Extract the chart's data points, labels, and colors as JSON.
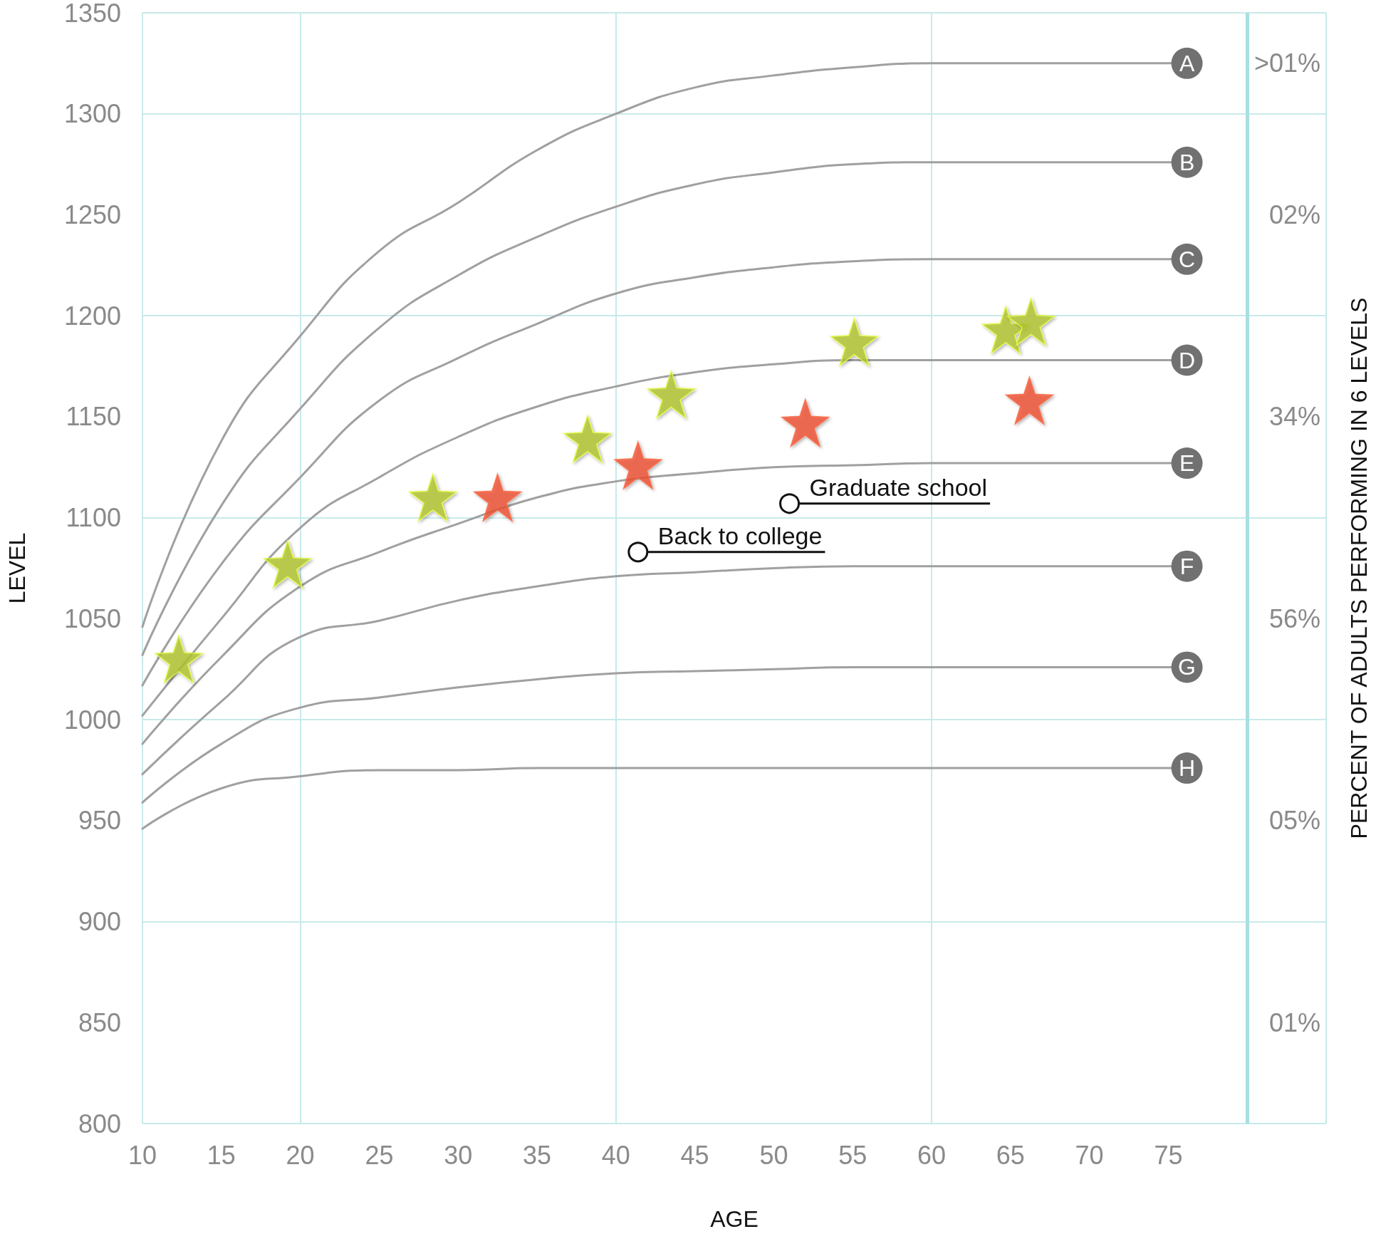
{
  "chart_data": {
    "type": "line",
    "xlabel": "AGE",
    "ylabel": "LEVEL",
    "y2label": "PERCENT OF ADULTS PERFORMING IN 6 LEVELS",
    "xlim": [
      10,
      85
    ],
    "xticks": [
      10,
      15,
      20,
      25,
      30,
      35,
      40,
      45,
      50,
      55,
      60,
      65,
      70,
      75
    ],
    "ylim": [
      800,
      1350
    ],
    "yticks": [
      800,
      850,
      900,
      950,
      1000,
      1050,
      1100,
      1150,
      1200,
      1250,
      1300,
      1350
    ],
    "grid": true,
    "ref_lines": [
      {
        "axis": "x",
        "value": 80,
        "color": "#a9dfe0"
      }
    ],
    "y2_categories": [
      null,
      ">01%",
      null,
      null,
      "02%",
      null,
      null,
      null,
      "34%",
      null,
      null,
      null,
      "56%",
      null,
      null,
      null,
      "05%",
      null,
      null,
      null,
      "01%",
      null,
      null
    ],
    "series": [
      {
        "name": "A",
        "color": "#a0a0a0",
        "x": [
          10,
          15,
          20,
          25,
          30,
          35,
          40,
          45,
          50,
          55,
          60,
          76
        ],
        "values": [
          1046,
          1138,
          1190,
          1232,
          1256,
          1282,
          1300,
          1313,
          1319,
          1323,
          1325,
          1325
        ]
      },
      {
        "name": "B",
        "color": "#a0a0a0",
        "x": [
          10,
          15,
          20,
          25,
          30,
          35,
          40,
          45,
          50,
          55,
          60,
          76
        ],
        "values": [
          1032,
          1106,
          1154,
          1194,
          1220,
          1239,
          1254,
          1265,
          1271,
          1275,
          1276,
          1276
        ]
      },
      {
        "name": "C",
        "color": "#a0a0a0",
        "x": [
          10,
          15,
          20,
          25,
          30,
          35,
          40,
          45,
          50,
          55,
          60,
          76
        ],
        "values": [
          1017,
          1077,
          1120,
          1158,
          1179,
          1196,
          1211,
          1219,
          1224,
          1227,
          1228,
          1228
        ]
      },
      {
        "name": "D",
        "color": "#a0a0a0",
        "x": [
          10,
          15,
          20,
          25,
          30,
          35,
          40,
          45,
          50,
          55,
          60,
          76
        ],
        "values": [
          1002,
          1050,
          1095,
          1120,
          1140,
          1155,
          1165,
          1172,
          1176,
          1178,
          1178,
          1178
        ]
      },
      {
        "name": "E",
        "color": "#a0a0a0",
        "x": [
          10,
          15,
          20,
          25,
          30,
          35,
          40,
          45,
          50,
          55,
          60,
          76
        ],
        "values": [
          988,
          1031,
          1066,
          1083,
          1097,
          1110,
          1118,
          1122,
          1125,
          1126,
          1127,
          1127
        ]
      },
      {
        "name": "F",
        "color": "#a0a0a0",
        "x": [
          10,
          15,
          20,
          25,
          30,
          35,
          40,
          45,
          50,
          55,
          60,
          76
        ],
        "values": [
          973,
          1009,
          1041,
          1049,
          1059,
          1066,
          1071,
          1073,
          1075,
          1076,
          1076,
          1076
        ]
      },
      {
        "name": "G",
        "color": "#a0a0a0",
        "x": [
          10,
          15,
          20,
          25,
          30,
          35,
          40,
          45,
          50,
          55,
          60,
          76
        ],
        "values": [
          959,
          988,
          1006,
          1011,
          1016,
          1020,
          1023,
          1024,
          1025,
          1026,
          1026,
          1026
        ]
      },
      {
        "name": "H",
        "color": "#a0a0a0",
        "x": [
          10,
          15,
          20,
          25,
          30,
          35,
          40,
          45,
          50,
          55,
          60,
          76
        ],
        "values": [
          946,
          966,
          972,
          975,
          975,
          976,
          976,
          976,
          976,
          976,
          976,
          976
        ]
      },
      {
        "type": "scatter",
        "marker": "star",
        "color": "#ee5234",
        "x": [
          32.5,
          41.4,
          52,
          66.2
        ],
        "values": [
          1110,
          1126,
          1147,
          1158
        ]
      },
      {
        "type": "scatter",
        "marker": "star",
        "color": "#b1c431",
        "x": [
          12.3,
          19.2,
          28.4,
          38.2,
          43.5,
          55.1,
          64.7,
          66.3
        ],
        "values": [
          1030,
          1077,
          1110,
          1139,
          1161,
          1187,
          1193,
          1197
        ]
      }
    ],
    "annotations": [
      {
        "text": "Graduate school",
        "x": 51,
        "y": 1107
      },
      {
        "text": "Back to college",
        "x": 41.4,
        "y": 1083
      }
    ]
  }
}
